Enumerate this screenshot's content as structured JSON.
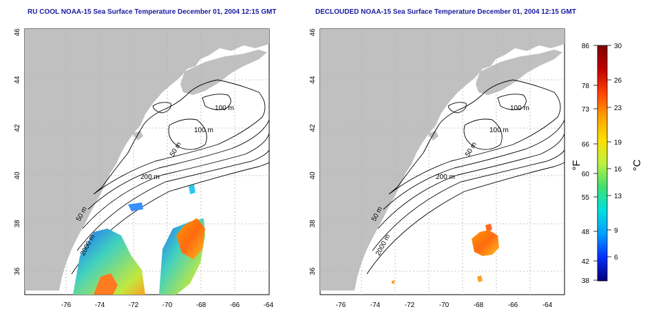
{
  "titles": {
    "left": "RU COOL NOAA-15 Sea Surface Temperature December 01, 2004 12:15 GMT",
    "right": "DECLOUDED NOAA-15 Sea Surface Temperature December 01, 2004 12:15 GMT"
  },
  "map": {
    "lon_ticks": [
      "-76",
      "-74",
      "-72",
      "-70",
      "-68",
      "-66",
      "-64"
    ],
    "lat_ticks": [
      "36",
      "38",
      "40",
      "42",
      "44",
      "46"
    ],
    "contour_labels": [
      "100 m",
      "100 m",
      "50 m",
      "200 m",
      "50 m",
      "2000 m"
    ],
    "colors": {
      "land": "#c0c0c0",
      "ocean": "#ffffff",
      "grid": "#b0b0b0",
      "contour": "#000000"
    }
  },
  "colorbar": {
    "fahrenheit_label": "°F",
    "celsius_label": "°C",
    "fahrenheit_ticks": [
      "86",
      "78",
      "73",
      "66",
      "60",
      "55",
      "48",
      "42",
      "38"
    ],
    "celsius_ticks": [
      "30",
      "26",
      "23",
      "19",
      "16",
      "13",
      "9",
      "6"
    ],
    "gradient": [
      "#00007a",
      "#0030ff",
      "#00a0ff",
      "#00e0e0",
      "#40e070",
      "#c0f040",
      "#ffe000",
      "#ffa000",
      "#ff4000",
      "#c00000",
      "#800000"
    ]
  }
}
